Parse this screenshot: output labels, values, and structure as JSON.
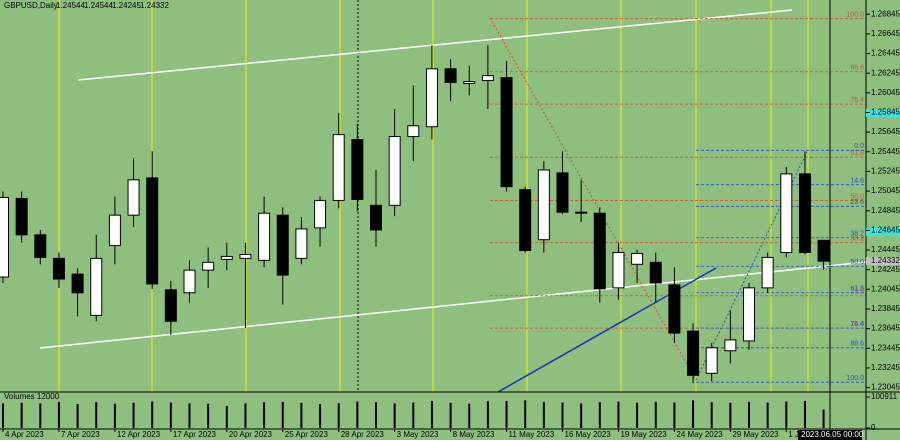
{
  "chart_data": [
    {
      "type": "candlestick",
      "symbol": "GBPUSD,Daily",
      "categories": [
        "4 Apr 2023",
        null,
        null,
        "7 Apr 2023",
        null,
        null,
        "12 Apr 2023",
        null,
        null,
        "17 Apr 2023",
        null,
        null,
        "20 Apr 2023",
        null,
        null,
        "25 Apr 2023",
        null,
        null,
        "28 Apr 2023",
        null,
        null,
        "3 May 2023",
        null,
        null,
        "8 May 2023",
        null,
        null,
        "11 May 2023",
        null,
        null,
        "16 May 2023",
        null,
        null,
        "19 May 2023",
        null,
        null,
        "24 May 2023",
        null,
        null,
        "29 May 2023",
        null,
        null,
        "1 Jun 2023",
        null,
        null
      ],
      "open": [
        1.2417,
        1.2497,
        1.246,
        1.2436,
        1.242,
        1.2378,
        1.2449,
        1.248,
        1.2518,
        1.2404,
        1.2401,
        1.2424,
        1.2435,
        1.2436,
        1.2434,
        1.248,
        1.2436,
        1.2467,
        1.2495,
        1.2557,
        1.249,
        1.249,
        1.256,
        1.257,
        1.2629,
        1.2614,
        1.2617,
        1.262,
        1.2506,
        1.2455,
        1.2523,
        1.2482,
        1.2482,
        1.2406,
        1.243,
        1.2432,
        1.2409,
        1.2362,
        1.2319,
        1.2342,
        1.2352,
        1.2406,
        1.2442,
        1.2522,
        1.24544
      ],
      "high": [
        1.2504,
        1.2504,
        1.2465,
        1.2442,
        1.2426,
        1.246,
        1.2499,
        1.2538,
        1.2545,
        1.2413,
        1.2434,
        1.2447,
        1.2452,
        1.2452,
        1.2499,
        1.2488,
        1.2478,
        1.2499,
        1.2584,
        1.2573,
        1.2526,
        1.2588,
        1.2612,
        1.2653,
        1.2639,
        1.2632,
        1.2653,
        1.2637,
        1.2509,
        1.2535,
        1.2545,
        1.2516,
        1.2488,
        1.2452,
        1.2445,
        1.2442,
        1.2427,
        1.237,
        1.235,
        1.2383,
        1.2411,
        1.2442,
        1.2529,
        1.2545,
        1.24544
      ],
      "low": [
        1.2411,
        1.2452,
        1.243,
        1.2406,
        1.2377,
        1.2372,
        1.243,
        1.2468,
        1.2405,
        1.2358,
        1.2391,
        1.2406,
        1.2424,
        1.2365,
        1.2427,
        1.2389,
        1.243,
        1.2448,
        1.2487,
        1.2484,
        1.2448,
        1.2479,
        1.2535,
        1.2557,
        1.2596,
        1.2602,
        1.2588,
        1.2504,
        1.2442,
        1.2442,
        1.2481,
        1.2473,
        1.2391,
        1.2394,
        1.2411,
        1.2391,
        1.235,
        1.2309,
        1.2311,
        1.2329,
        1.2343,
        1.2401,
        1.2437,
        1.244,
        1.24245
      ],
      "close": [
        1.2498,
        1.246,
        1.2437,
        1.2415,
        1.2401,
        1.2436,
        1.248,
        1.2516,
        1.241,
        1.2372,
        1.2424,
        1.2432,
        1.2438,
        1.244,
        1.2482,
        1.2419,
        1.2466,
        1.2495,
        1.2562,
        1.2496,
        1.2465,
        1.256,
        1.2571,
        1.2629,
        1.2615,
        1.2616,
        1.2622,
        1.2509,
        1.2444,
        1.2526,
        1.2483,
        1.2483,
        1.2405,
        1.2442,
        1.2441,
        1.2411,
        1.236,
        1.2317,
        1.2345,
        1.2353,
        1.2406,
        1.2437,
        1.2522,
        1.2442,
        1.24332
      ],
      "up_color": "#ffffff",
      "down_color": "#000000",
      "ylim": [
        1.23,
        1.2699
      ],
      "yticks": [
        1.26845,
        1.26645,
        1.26445,
        1.26245,
        1.26045,
        1.25845,
        1.25645,
        1.25445,
        1.25245,
        1.25045,
        1.24845,
        1.24645,
        1.24445,
        1.24245,
        1.24045,
        1.23845,
        1.23645,
        1.23445,
        1.23245,
        1.23045
      ],
      "fib_levels": [
        {
          "name": "fibo-red",
          "color": "#d05030",
          "levels": [
            {
              "label": "100.0",
              "value": 1.268
            },
            {
              "label": "88.6",
              "value": 1.2626
            },
            {
              "label": "76.4",
              "value": 1.2593
            },
            {
              "label": "61.8",
              "value": 1.2539
            },
            {
              "label": "50.0",
              "value": 1.2495
            },
            {
              "label": "38.2",
              "value": 1.2452
            },
            {
              "label": "23.6",
              "value": 1.2398
            },
            {
              "label": "14.6",
              "value": 1.2365
            }
          ]
        },
        {
          "name": "fibo-blue",
          "color": "#2050d0",
          "levels": [
            {
              "label": "0.0",
              "value": 1.2546
            },
            {
              "label": "14.6",
              "value": 1.2511
            },
            {
              "label": "23.6",
              "value": 1.2489
            },
            {
              "label": "38.2",
              "value": 1.2457
            },
            {
              "label": "50.0",
              "value": 1.2428
            },
            {
              "label": "61.8",
              "value": 1.2401
            },
            {
              "label": "76.4",
              "value": 1.2365
            },
            {
              "label": "88.6",
              "value": 1.2345
            },
            {
              "label": "100.0",
              "value": 1.231
            }
          ]
        }
      ],
      "cursor_label": "2023.06.05 00:00"
    },
    {
      "type": "volume",
      "title": "Volumes 12000",
      "color": "#000000",
      "values": [
        80000,
        82000,
        80000,
        85000,
        78000,
        84000,
        79000,
        82000,
        86000,
        83000,
        80000,
        79000,
        72000,
        80000,
        84000,
        85000,
        82000,
        78000,
        81000,
        86000,
        84000,
        80000,
        83000,
        88000,
        82000,
        79000,
        87000,
        88000,
        90000,
        85000,
        83000,
        80000,
        84000,
        86000,
        82000,
        85000,
        83000,
        90000,
        84000,
        82000,
        85000,
        83000,
        86000,
        88000,
        60000
      ],
      "ylim": [
        0,
        100911
      ],
      "yticks": [
        100911,
        0
      ]
    }
  ]
}
